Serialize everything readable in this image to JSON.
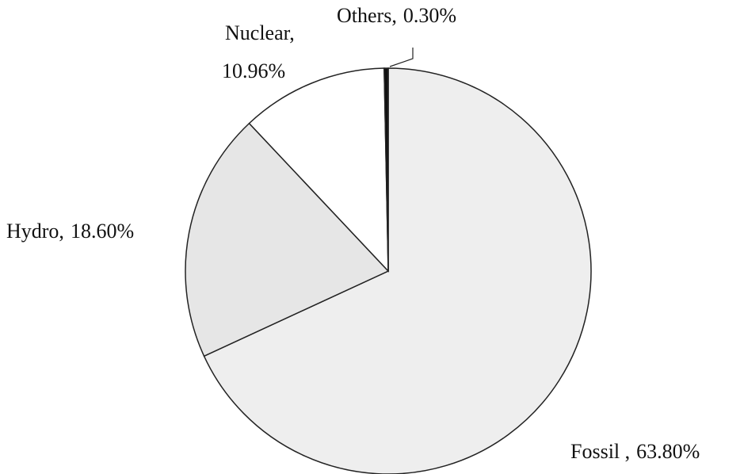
{
  "chart_data": {
    "type": "pie",
    "categories": [
      "Fossil ,",
      "Hydro,",
      "Nuclear,",
      "Others,"
    ],
    "values": [
      63.8,
      18.6,
      10.96,
      0.3
    ],
    "value_labels": [
      "63.80%",
      "18.60%",
      "10.96%",
      "0.30%"
    ],
    "colors": [
      "#eeeeee",
      "#e6e6e6",
      "#ffffff",
      "#111111"
    ]
  }
}
